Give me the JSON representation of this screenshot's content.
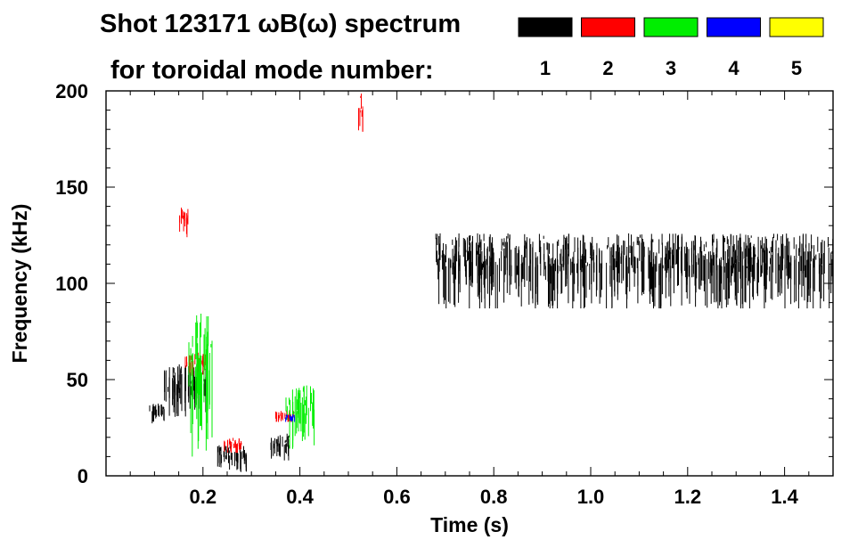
{
  "chart_data": {
    "type": "heatmap",
    "title": "Shot 123171 ωB(ω) spectrum",
    "subtitle": "for toroidal mode number:",
    "xlabel": "Time (s)",
    "ylabel": "Frequency (kHz)",
    "xlim": [
      0.0,
      1.5
    ],
    "ylim": [
      0,
      200
    ],
    "xticks": [
      0.2,
      0.4,
      0.6,
      0.8,
      1.0,
      1.2,
      1.4
    ],
    "xtick_labels": [
      "0.2",
      "0.4",
      "0.6",
      "0.8",
      "1.0",
      "1.2",
      "1.4"
    ],
    "yticks": [
      0,
      50,
      100,
      150,
      200
    ],
    "ytick_labels": [
      "0",
      "50",
      "100",
      "150",
      "200"
    ],
    "legend": [
      {
        "label": "1",
        "color": "#000000"
      },
      {
        "label": "2",
        "color": "#ff0000"
      },
      {
        "label": "3",
        "color": "#00ee00"
      },
      {
        "label": "4",
        "color": "#0000ff"
      },
      {
        "label": "5",
        "color": "#ffff00"
      }
    ],
    "series": [
      {
        "name": "n=1",
        "color": "#000000",
        "regions": [
          {
            "t": [
              0.09,
              0.12
            ],
            "f": [
              27,
              38
            ]
          },
          {
            "t": [
              0.12,
              0.21
            ],
            "f": [
              30,
              58
            ]
          },
          {
            "t": [
              0.23,
              0.29
            ],
            "f": [
              2,
              16
            ]
          },
          {
            "t": [
              0.34,
              0.38
            ],
            "f": [
              8,
              22
            ]
          },
          {
            "t": [
              0.68,
              1.5
            ],
            "f": [
              87,
              126
            ]
          }
        ]
      },
      {
        "name": "n=2",
        "color": "#ff0000",
        "regions": [
          {
            "t": [
              0.16,
              0.21
            ],
            "f": [
              52,
              64
            ]
          },
          {
            "t": [
              0.15,
              0.17
            ],
            "f": [
              124,
              140
            ]
          },
          {
            "t": [
              0.24,
              0.28
            ],
            "f": [
              12,
              20
            ]
          },
          {
            "t": [
              0.35,
              0.39
            ],
            "f": [
              28,
              34
            ]
          },
          {
            "t": [
              0.52,
              0.53
            ],
            "f": [
              177,
              200
            ]
          }
        ]
      },
      {
        "name": "n=3",
        "color": "#00ee00",
        "regions": [
          {
            "t": [
              0.37,
              0.43
            ],
            "f": [
              14,
              47
            ]
          },
          {
            "t": [
              0.17,
              0.22
            ],
            "f": [
              10,
              86
            ]
          }
        ]
      },
      {
        "name": "n=4",
        "color": "#0000ff",
        "regions": [
          {
            "t": [
              0.37,
              0.39
            ],
            "f": [
              28,
              32
            ]
          }
        ]
      }
    ]
  }
}
